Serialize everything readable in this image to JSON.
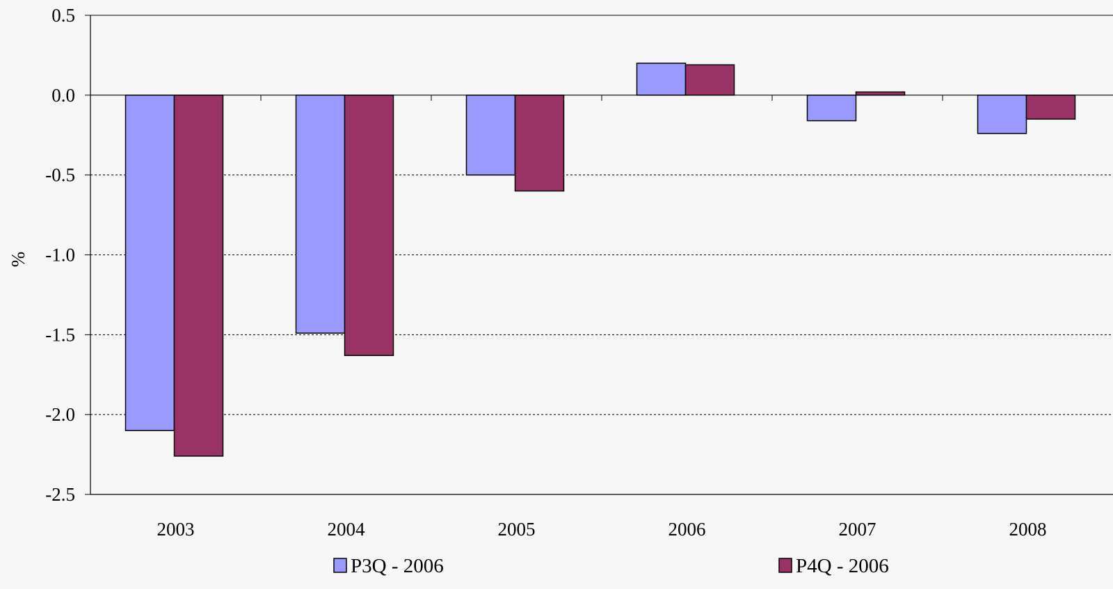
{
  "chart_data": {
    "type": "bar",
    "ylabel": "%",
    "xlabel": "",
    "title": "",
    "ylim": [
      -2.5,
      0.5
    ],
    "yticks": [
      0.5,
      0.0,
      -0.5,
      -1.0,
      -1.5,
      -2.0,
      -2.5
    ],
    "ytick_labels": [
      "0.5",
      "0.0",
      "-0.5",
      "-1.0",
      "-1.5",
      "-2.0",
      "-2.5"
    ],
    "categories": [
      "2003",
      "2004",
      "2005",
      "2006",
      "2007",
      "2008"
    ],
    "grid": "horizontal dashed",
    "legend_position": "bottom",
    "series": [
      {
        "name": "P3Q - 2006",
        "color": "#9999ff",
        "values": [
          -2.1,
          -1.49,
          -0.5,
          0.2,
          -0.16,
          -0.24
        ]
      },
      {
        "name": "P4Q - 2006",
        "color": "#993366",
        "values": [
          -2.26,
          -1.63,
          -0.6,
          0.19,
          0.02,
          -0.15
        ]
      }
    ]
  }
}
